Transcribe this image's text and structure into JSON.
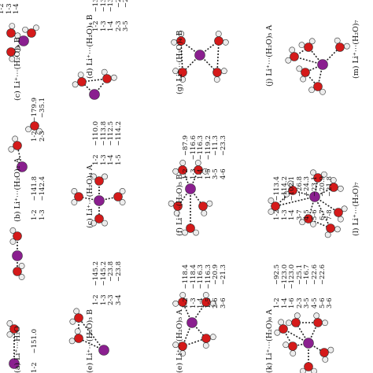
{
  "colors": {
    "li": "#8a1f8f",
    "oxygen": "#d41a1a",
    "hydrogen": "#ececec",
    "bond": "#222222"
  },
  "panels": [
    {
      "id": "a",
      "caption": "(a) Li⁺⋯H₂O",
      "table": [
        [
          "1-2",
          "−151.0"
        ]
      ]
    },
    {
      "id": "b",
      "caption": "(b) Li⁺⋯(H₂O)₂ A",
      "table": [
        [
          "1-2",
          "−141.8"
        ],
        [
          "1-3",
          "−142.4"
        ]
      ]
    },
    {
      "id": "c",
      "caption": "(c) Li⁺⋯(H₂O)₂ B",
      "table": [
        [
          "1-2",
          "−179.9"
        ],
        [
          "2-3",
          "−35.1"
        ]
      ]
    },
    {
      "id": "d",
      "caption": "(d) Li⁺⋯(H₂O)₃",
      "table": [
        [
          "1-2",
          ""
        ],
        [
          "1-3",
          ""
        ],
        [
          "1-4",
          ""
        ]
      ]
    },
    {
      "id": "e",
      "caption": "(e) Li⁺⋯(H₂O)₃ B",
      "table": [
        [
          "1-2",
          "−145.2"
        ],
        [
          "1-3",
          "−145.2"
        ],
        [
          "2-3",
          "−23.8"
        ],
        [
          "3-4",
          "−23.8"
        ]
      ]
    },
    {
      "id": "f",
      "caption": "(c) Li⁺⋯(H₂O)₄ A",
      "table": [
        [
          "1-2",
          "−110.0"
        ],
        [
          "1-3",
          "−113.8"
        ],
        [
          "1-4",
          "−112.5"
        ],
        [
          "1-5",
          "−114.2"
        ]
      ]
    },
    {
      "id": "g",
      "caption": "(d) Li⁺⋯(H₂O)₄ B",
      "table": [
        [
          "1-2",
          "−134.7"
        ],
        [
          "1-3",
          "−134.7"
        ],
        [
          "1-4",
          "−134.7"
        ],
        [
          "2-3",
          "−23.0"
        ],
        [
          "3-5",
          "−23.0"
        ]
      ]
    },
    {
      "id": "h",
      "caption": "(e) Li⁺⋯(H₂O)₅ A",
      "table": [
        [
          "1-2",
          "−118.4"
        ],
        [
          "1-3",
          "−118.4"
        ],
        [
          "1-4",
          "−116.3"
        ],
        [
          "1-5",
          "−116.3"
        ],
        [
          "2-6",
          "−20.9"
        ],
        [
          "3-6",
          "−21.3"
        ]
      ]
    },
    {
      "id": "i",
      "caption": "(f) Li⁺⋯(H₂O)₅ B",
      "table": [
        [
          "1-2",
          "−87.9"
        ],
        [
          "1-3",
          "−116.6"
        ],
        [
          "1-4",
          "−116.3"
        ],
        [
          "1-5",
          "−119.2"
        ],
        [
          "3-5",
          "−11.3"
        ],
        [
          "4-6",
          "−23.3"
        ]
      ]
    },
    {
      "id": "j",
      "caption": "(g) Li⁺⋯(H₂O)₄ B",
      "table": []
    },
    {
      "id": "k",
      "caption": "(k) Li⁺⋯(H₂O)₆ A",
      "table": [
        [
          "1-2",
          "−92.5"
        ],
        [
          "1-4",
          "−123.0"
        ],
        [
          "1-6",
          "−123.0"
        ],
        [
          "2-3",
          "−25.1"
        ],
        [
          "3-5",
          "−16.7"
        ],
        [
          "4-5",
          "−22.6"
        ],
        [
          "5-6",
          "−22.6"
        ],
        [
          "3-6",
          ""
        ]
      ]
    },
    {
      "id": "l",
      "caption": "(l) Li⁺⋯(H₂O)₇",
      "table": [
        [
          "1-2",
          "−113.4"
        ],
        [
          "1-3",
          "−114.2"
        ],
        [
          "1-4",
          "−102.1"
        ],
        [
          "3-7",
          "−26.8"
        ],
        [
          "4-5",
          "−24.3"
        ],
        [
          "5-6",
          "−23.1"
        ],
        [
          "6-7",
          "−20.9"
        ],
        [
          "7-8",
          "−21.8"
        ]
      ]
    },
    {
      "id": "m",
      "caption": "(j) Li⁺⋯(H₂O)₅ A",
      "table": []
    },
    {
      "id": "n",
      "caption": "(m) Li⁺⋯(H₂O)₇",
      "table": []
    }
  ]
}
